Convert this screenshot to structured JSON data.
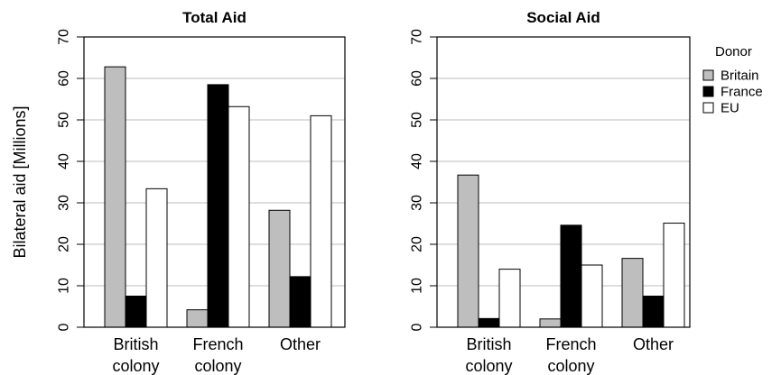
{
  "chart_data": [
    {
      "type": "bar",
      "title": "Total Aid",
      "ylabel": "Bilateral aid [Millions]",
      "ylim": [
        0,
        70
      ],
      "yticks": [
        0,
        10,
        20,
        30,
        40,
        50,
        60,
        70
      ],
      "grid": true,
      "categories": [
        [
          "British",
          "colony"
        ],
        [
          "French",
          "colony"
        ],
        [
          "Other"
        ]
      ],
      "series": [
        {
          "name": "Britain",
          "color": "#bebebe",
          "values": [
            62.8,
            4.2,
            28.2
          ]
        },
        {
          "name": "France",
          "color": "#000000",
          "values": [
            7.5,
            58.5,
            12.2
          ]
        },
        {
          "name": "EU",
          "color": "#ffffff",
          "values": [
            33.4,
            53.2,
            51.0
          ]
        }
      ]
    },
    {
      "type": "bar",
      "title": "Social Aid",
      "ylim": [
        0,
        70
      ],
      "yticks": [
        0,
        10,
        20,
        30,
        40,
        50,
        60,
        70
      ],
      "grid": true,
      "categories": [
        [
          "British",
          "colony"
        ],
        [
          "French",
          "colony"
        ],
        [
          "Other"
        ]
      ],
      "series": [
        {
          "name": "Britain",
          "color": "#bebebe",
          "values": [
            36.7,
            2.0,
            16.6
          ]
        },
        {
          "name": "France",
          "color": "#000000",
          "values": [
            2.1,
            24.6,
            7.5
          ]
        },
        {
          "name": "EU",
          "color": "#ffffff",
          "values": [
            14.0,
            15.0,
            25.1
          ]
        }
      ]
    }
  ],
  "legend": {
    "title": "Donor",
    "placement": "right",
    "items": [
      {
        "label": "Britain",
        "color": "#bebebe"
      },
      {
        "label": "France",
        "color": "#000000"
      },
      {
        "label": "EU",
        "color": "#ffffff"
      }
    ]
  }
}
